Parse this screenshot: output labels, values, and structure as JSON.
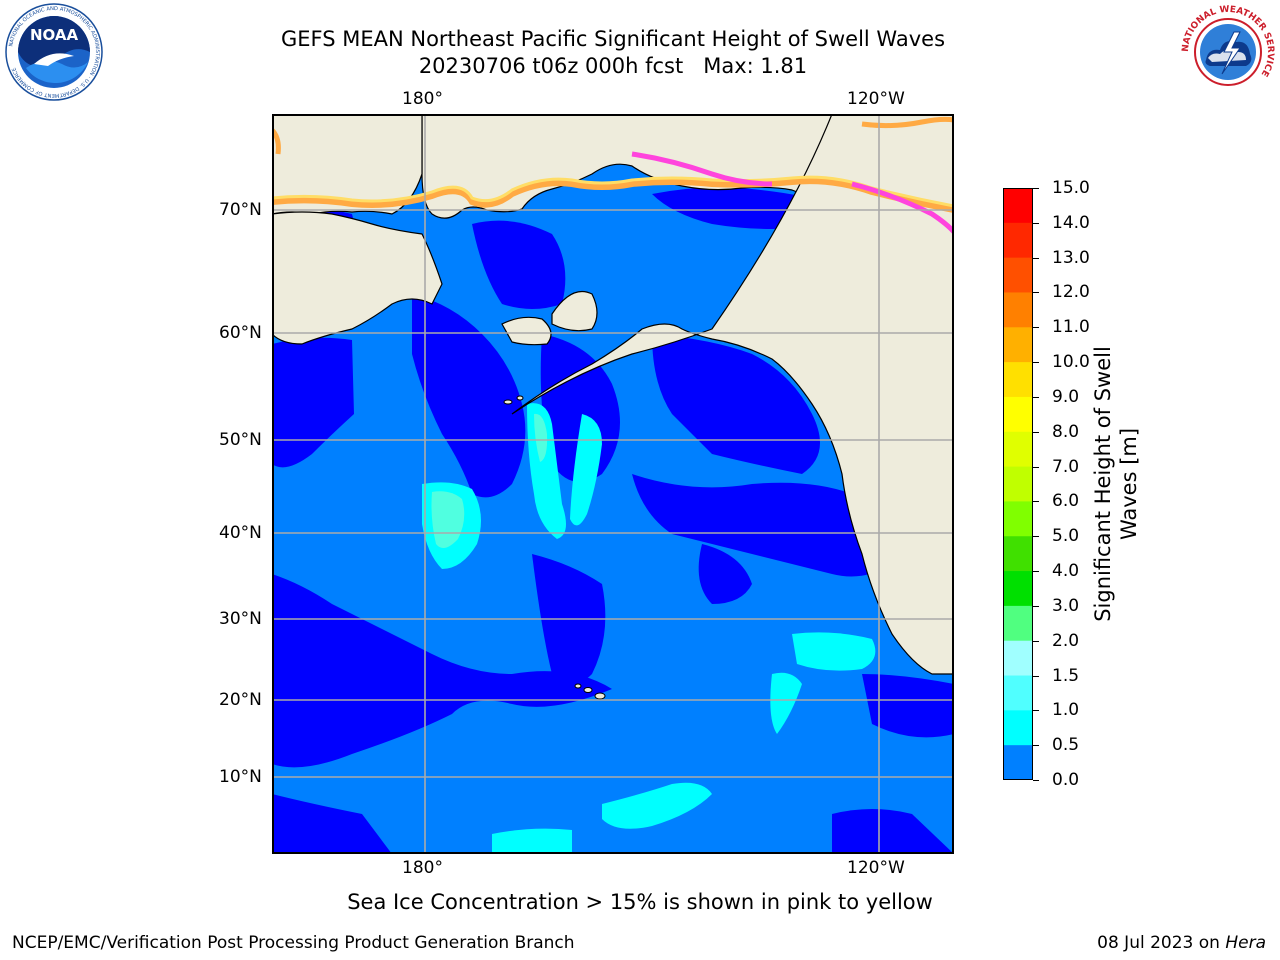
{
  "header": {
    "title_line1": "GEFS MEAN Northeast Pacific Significant Height of Swell Waves",
    "title_line2": "20230706 t06z 000h fcst   Max: 1.81"
  },
  "logos": {
    "left": {
      "icon": "noaa-logo",
      "text": "NOAA",
      "ring_text": "NATIONAL OCEANIC AND ATMOSPHERIC ADMINISTRATION · U.S. DEPARTMENT OF COMMERCE"
    },
    "right": {
      "icon": "nws-logo",
      "ring_text": "NATIONAL WEATHER SERVICE"
    }
  },
  "map": {
    "lon_labels": [
      "180°",
      "120°W"
    ],
    "lat_labels": [
      "70°N",
      "60°N",
      "50°N",
      "40°N",
      "30°N",
      "20°N",
      "10°N"
    ],
    "colors": {
      "land": "#eeecdc",
      "ocean_low": "#0000ff",
      "ocean_mid": "#0080ff",
      "ocean_high": "#00ffff",
      "ocean_pale": "#50ffe0",
      "ice_pink": "#ff44dd",
      "ice_orange": "#ffaa44",
      "ice_yellow": "#ffdd66",
      "grid": "#aaaaaa"
    }
  },
  "colorbar": {
    "ticks": [
      "15.0",
      "14.0",
      "13.0",
      "12.0",
      "11.0",
      "10.0",
      "9.0",
      "8.0",
      "7.0",
      "6.0",
      "5.0",
      "4.0",
      "3.0",
      "2.0",
      "1.5",
      "1.0",
      "0.5",
      "0.0"
    ],
    "colors": [
      "#ff0000",
      "#ff2800",
      "#ff5000",
      "#ff8000",
      "#ffb000",
      "#ffe000",
      "#ffff00",
      "#e0ff00",
      "#c0ff00",
      "#80ff00",
      "#40e000",
      "#00e000",
      "#50ff80",
      "#a0ffff",
      "#50ffff",
      "#00ffff",
      "#0080ff",
      "#0000ff"
    ],
    "label_line1": "Significant Height of Swell",
    "label_line2": "Waves [m]"
  },
  "footer": {
    "ice_note": "Sea Ice Concentration > 15% is shown in pink to yellow",
    "credit": "NCEP/EMC/Verification Post Processing Product Generation Branch",
    "date_prefix": "08 Jul 2023 on ",
    "date_host": "Hera"
  }
}
